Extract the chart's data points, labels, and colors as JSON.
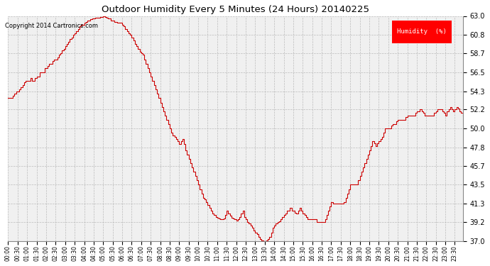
{
  "title": "Outdoor Humidity Every 5 Minutes (24 Hours) 20140225",
  "copyright_text": "Copyright 2014 Cartronics.com",
  "legend_label": "Humidity  (%)",
  "legend_bg": "#ff0000",
  "legend_text_color": "#ffffff",
  "line_color": "#cc0000",
  "bg_color": "#ffffff",
  "plot_bg_color": "#f0f0f0",
  "grid_color": "#bbbbbb",
  "ylim": [
    37.0,
    63.0
  ],
  "yticks": [
    37.0,
    39.2,
    41.3,
    43.5,
    45.7,
    47.8,
    50.0,
    52.2,
    54.3,
    56.5,
    58.7,
    60.8,
    63.0
  ],
  "humidity_values": [
    53.5,
    53.5,
    53.5,
    53.8,
    54.0,
    54.3,
    54.3,
    54.5,
    54.8,
    55.0,
    55.3,
    55.5,
    55.5,
    55.5,
    55.8,
    55.5,
    55.5,
    55.8,
    56.0,
    56.0,
    56.5,
    56.5,
    56.5,
    57.0,
    57.0,
    57.2,
    57.5,
    57.5,
    57.8,
    58.0,
    58.0,
    58.2,
    58.5,
    58.7,
    59.0,
    59.2,
    59.5,
    59.8,
    60.0,
    60.3,
    60.5,
    60.8,
    61.0,
    61.2,
    61.5,
    61.8,
    62.0,
    62.0,
    62.2,
    62.3,
    62.5,
    62.5,
    62.6,
    62.7,
    62.7,
    62.8,
    62.8,
    62.8,
    62.9,
    62.9,
    63.0,
    62.9,
    62.8,
    62.7,
    62.7,
    62.5,
    62.5,
    62.3,
    62.3,
    62.2,
    62.2,
    62.2,
    62.0,
    61.8,
    61.5,
    61.2,
    61.0,
    60.8,
    60.5,
    60.2,
    59.8,
    59.5,
    59.2,
    58.9,
    58.7,
    58.5,
    58.0,
    57.5,
    57.0,
    56.5,
    56.0,
    55.5,
    55.0,
    54.5,
    54.0,
    53.5,
    53.0,
    52.5,
    52.0,
    51.5,
    51.0,
    50.5,
    50.0,
    49.5,
    49.2,
    49.0,
    48.8,
    48.5,
    48.2,
    48.5,
    48.8,
    48.2,
    47.5,
    47.0,
    46.5,
    46.0,
    45.5,
    45.0,
    44.5,
    44.0,
    43.5,
    43.0,
    42.5,
    42.0,
    41.8,
    41.5,
    41.2,
    40.8,
    40.5,
    40.2,
    40.0,
    39.8,
    39.7,
    39.6,
    39.5,
    39.5,
    39.6,
    40.0,
    40.5,
    40.2,
    39.9,
    39.7,
    39.6,
    39.5,
    39.4,
    39.5,
    39.8,
    40.2,
    40.5,
    39.8,
    39.5,
    39.2,
    39.0,
    38.8,
    38.5,
    38.2,
    38.0,
    37.8,
    37.5,
    37.2,
    37.1,
    37.0,
    37.0,
    37.1,
    37.2,
    37.5,
    38.0,
    38.5,
    38.8,
    39.0,
    39.2,
    39.3,
    39.5,
    39.8,
    40.0,
    40.2,
    40.5,
    40.5,
    40.8,
    40.5,
    40.5,
    40.3,
    40.2,
    40.5,
    40.8,
    40.5,
    40.2,
    40.0,
    39.8,
    39.5,
    39.5,
    39.5,
    39.5,
    39.5,
    39.5,
    39.2,
    39.2,
    39.2,
    39.2,
    39.2,
    39.5,
    40.0,
    40.5,
    41.0,
    41.5,
    41.3,
    41.3,
    41.3,
    41.3,
    41.3,
    41.3,
    41.3,
    41.5,
    42.0,
    42.5,
    43.0,
    43.5,
    43.5,
    43.5,
    43.5,
    43.5,
    44.0,
    44.5,
    45.0,
    45.5,
    46.0,
    46.5,
    47.0,
    47.5,
    48.0,
    48.5,
    48.3,
    48.0,
    48.3,
    48.5,
    48.8,
    49.0,
    49.5,
    50.0,
    50.0,
    50.0,
    50.0,
    50.3,
    50.5,
    50.5,
    50.8,
    51.0,
    51.0,
    51.0,
    51.0,
    51.0,
    51.3,
    51.5,
    51.5,
    51.5,
    51.5,
    51.5,
    51.8,
    52.0,
    52.0,
    52.2,
    52.0,
    51.8,
    51.5,
    51.5,
    51.5,
    51.5,
    51.5,
    51.5,
    51.8,
    52.0,
    52.2,
    52.2,
    52.2,
    52.0,
    51.8,
    51.5,
    52.0,
    52.2,
    52.5,
    52.2,
    52.0,
    52.2,
    52.5,
    52.3,
    52.0,
    51.8,
    51.5,
    51.5
  ]
}
